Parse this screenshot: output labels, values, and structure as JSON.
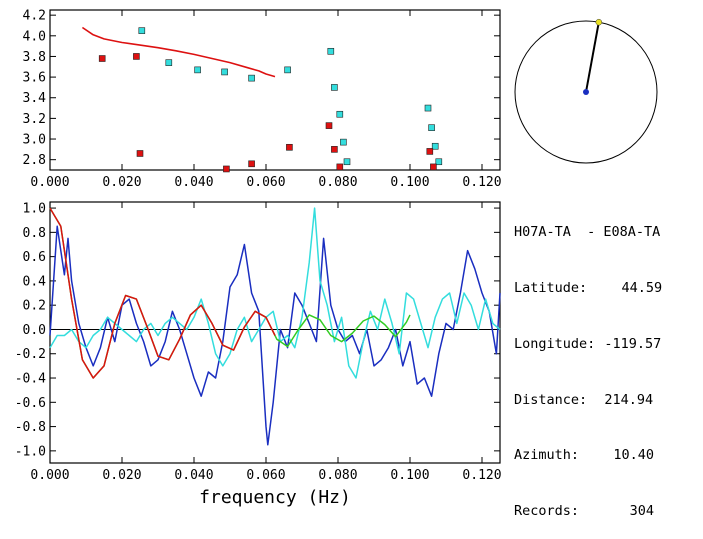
{
  "colors": {
    "axis": "#000000",
    "dispersion_fit": "#dd1111",
    "group_marker": "#33dddd",
    "phase_marker": "#dd1111",
    "bessel_red": "#dd1111",
    "bessel_green": "#33cc22",
    "ccf_blue": "#1a2ec0",
    "ccf_cyan": "#33dddd",
    "compass_needle": "#000000",
    "compass_center": "#1a2ec0",
    "compass_tip": "#e8e020"
  },
  "info": {
    "station_pair": "H07A-TA  - E08A-TA",
    "latitude_label": "Latitude:",
    "latitude_value": "44.59",
    "longitude_label": "Longitude:",
    "longitude_value": "-119.57",
    "distance_label": "Distance:",
    "distance_value": "214.94",
    "azimuth_label": "Azimuth:",
    "azimuth_value": "10.40",
    "records_label": "Records:",
    "records_value": "304"
  },
  "compass": {
    "azimuth_deg": 10.4
  },
  "chart_data": [
    {
      "type": "scatter",
      "title": "",
      "xlabel": "",
      "ylabel": "",
      "xlim": [
        0.0,
        0.125
      ],
      "ylim": [
        2.7,
        4.25
      ],
      "xticks": [
        "0.000",
        "0.020",
        "0.040",
        "0.060",
        "0.080",
        "0.100",
        "0.120"
      ],
      "xtick_values": [
        0.0,
        0.02,
        0.04,
        0.06,
        0.08,
        0.1,
        0.12
      ],
      "yticks": [
        "2.8",
        "3.0",
        "3.2",
        "3.4",
        "3.6",
        "3.8",
        "4.0",
        "4.2"
      ],
      "ytick_values": [
        2.8,
        3.0,
        3.2,
        3.4,
        3.6,
        3.8,
        4.0,
        4.2
      ],
      "series": [
        {
          "kind": "line",
          "color_key": "dispersion_fit",
          "x": [
            0.009,
            0.012,
            0.015,
            0.02,
            0.025,
            0.03,
            0.035,
            0.04,
            0.045,
            0.05,
            0.055,
            0.058,
            0.06,
            0.0625
          ],
          "y": [
            4.08,
            4.01,
            3.97,
            3.935,
            3.91,
            3.885,
            3.855,
            3.82,
            3.78,
            3.74,
            3.69,
            3.66,
            3.63,
            3.605
          ]
        },
        {
          "kind": "markers",
          "color_key": "group_marker",
          "x": [
            0.0255,
            0.033,
            0.041,
            0.0485,
            0.056,
            0.066,
            0.078,
            0.079,
            0.0805,
            0.0815,
            0.0825,
            0.105,
            0.106,
            0.107,
            0.108
          ],
          "y": [
            4.05,
            3.74,
            3.67,
            3.65,
            3.59,
            3.67,
            3.85,
            3.5,
            3.24,
            2.97,
            2.78,
            3.3,
            3.11,
            2.93,
            2.78
          ]
        },
        {
          "kind": "markers",
          "color_key": "phase_marker",
          "x": [
            0.0145,
            0.024,
            0.025,
            0.049,
            0.056,
            0.0665,
            0.0775,
            0.079,
            0.0805,
            0.1055,
            0.1065
          ],
          "y": [
            3.78,
            3.8,
            2.86,
            2.71,
            2.76,
            2.92,
            3.13,
            2.9,
            2.73,
            2.88,
            2.73
          ]
        }
      ]
    },
    {
      "type": "line",
      "title": "",
      "xlabel": "frequency (Hz)",
      "ylabel": "",
      "xlim": [
        0.0,
        0.125
      ],
      "ylim": [
        -1.1,
        1.05
      ],
      "xticks": [
        "0.000",
        "0.020",
        "0.040",
        "0.060",
        "0.080",
        "0.100",
        "0.120"
      ],
      "xtick_values": [
        0.0,
        0.02,
        0.04,
        0.06,
        0.08,
        0.1,
        0.12
      ],
      "yticks": [
        "1.0",
        "0.8",
        "0.6",
        "0.4",
        "0.2",
        "0.0",
        "-0.2",
        "-0.4",
        "-0.6",
        "-0.8",
        "-1.0"
      ],
      "ytick_values": [
        1.0,
        0.8,
        0.6,
        0.4,
        0.2,
        0.0,
        -0.2,
        -0.4,
        -0.6,
        -0.8,
        -1.0
      ],
      "series": [
        {
          "color_key": "ccf_blue",
          "x": [
            0.0,
            0.002,
            0.004,
            0.005,
            0.006,
            0.008,
            0.01,
            0.012,
            0.014,
            0.016,
            0.018,
            0.02,
            0.022,
            0.024,
            0.026,
            0.028,
            0.03,
            0.032,
            0.034,
            0.036,
            0.038,
            0.04,
            0.042,
            0.044,
            0.046,
            0.048,
            0.05,
            0.052,
            0.054,
            0.056,
            0.058,
            0.06,
            0.0605,
            0.062,
            0.064,
            0.066,
            0.068,
            0.07,
            0.072,
            0.074,
            0.076,
            0.078,
            0.08,
            0.082,
            0.084,
            0.086,
            0.088,
            0.09,
            0.092,
            0.094,
            0.096,
            0.098,
            0.1,
            0.102,
            0.104,
            0.106,
            0.108,
            0.11,
            0.112,
            0.114,
            0.116,
            0.118,
            0.12,
            0.122,
            0.124,
            0.125
          ],
          "y": [
            -0.05,
            0.85,
            0.45,
            0.75,
            0.4,
            0.05,
            -0.15,
            -0.3,
            -0.15,
            0.1,
            -0.1,
            0.2,
            0.25,
            0.05,
            -0.1,
            -0.3,
            -0.25,
            -0.1,
            0.15,
            0.0,
            -0.2,
            -0.4,
            -0.55,
            -0.35,
            -0.4,
            -0.1,
            0.35,
            0.45,
            0.7,
            0.3,
            0.15,
            -0.8,
            -0.95,
            -0.6,
            0.0,
            -0.15,
            0.3,
            0.2,
            0.05,
            -0.1,
            0.75,
            0.2,
            0.0,
            -0.1,
            -0.05,
            -0.2,
            0.0,
            -0.3,
            -0.25,
            -0.15,
            0.0,
            -0.3,
            -0.1,
            -0.45,
            -0.4,
            -0.55,
            -0.2,
            0.05,
            0.0,
            0.3,
            0.65,
            0.5,
            0.3,
            0.15,
            -0.2,
            0.3
          ]
        },
        {
          "color_key": "ccf_cyan",
          "x": [
            0.0,
            0.002,
            0.004,
            0.006,
            0.008,
            0.01,
            0.012,
            0.014,
            0.016,
            0.018,
            0.02,
            0.022,
            0.024,
            0.026,
            0.028,
            0.03,
            0.032,
            0.034,
            0.036,
            0.038,
            0.04,
            0.042,
            0.044,
            0.046,
            0.048,
            0.05,
            0.052,
            0.054,
            0.056,
            0.058,
            0.06,
            0.062,
            0.064,
            0.066,
            0.068,
            0.07,
            0.072,
            0.0735,
            0.075,
            0.077,
            0.079,
            0.081,
            0.083,
            0.085,
            0.087,
            0.089,
            0.091,
            0.093,
            0.095,
            0.097,
            0.099,
            0.101,
            0.103,
            0.105,
            0.107,
            0.109,
            0.111,
            0.113,
            0.115,
            0.117,
            0.119,
            0.121,
            0.123,
            0.125
          ],
          "y": [
            -0.15,
            -0.05,
            -0.05,
            0.0,
            -0.1,
            -0.15,
            -0.05,
            0.0,
            0.1,
            0.05,
            0.0,
            -0.05,
            -0.1,
            0.0,
            0.05,
            -0.05,
            0.05,
            0.1,
            0.05,
            0.0,
            0.1,
            0.25,
            0.05,
            -0.2,
            -0.3,
            -0.2,
            0.0,
            0.1,
            -0.1,
            0.0,
            0.1,
            0.15,
            -0.1,
            -0.05,
            -0.15,
            0.1,
            0.55,
            1.0,
            0.4,
            0.2,
            -0.1,
            0.1,
            -0.3,
            -0.4,
            -0.1,
            0.15,
            0.0,
            0.25,
            0.05,
            -0.2,
            0.3,
            0.25,
            0.05,
            -0.15,
            0.1,
            0.25,
            0.3,
            0.05,
            0.3,
            0.2,
            0.0,
            0.25,
            0.05,
            0.0
          ]
        },
        {
          "color_key": "bessel_green",
          "x": [
            0.0,
            0.003,
            0.006,
            0.009,
            0.012,
            0.015,
            0.018,
            0.021,
            0.024,
            0.027,
            0.03,
            0.033,
            0.036,
            0.039,
            0.042,
            0.045,
            0.048,
            0.051,
            0.054,
            0.057,
            0.06,
            0.063,
            0.066,
            0.069,
            0.072,
            0.075,
            0.078,
            0.081,
            0.084,
            0.087,
            0.09,
            0.093,
            0.096,
            0.099,
            0.1
          ],
          "y": [
            1.0,
            0.85,
            0.25,
            -0.25,
            -0.4,
            -0.3,
            0.05,
            0.28,
            0.25,
            0.02,
            -0.22,
            -0.25,
            -0.08,
            0.12,
            0.2,
            0.05,
            -0.13,
            -0.17,
            0.02,
            0.15,
            0.1,
            -0.08,
            -0.14,
            0.0,
            0.12,
            0.08,
            -0.05,
            -0.1,
            -0.03,
            0.07,
            0.11,
            0.04,
            -0.06,
            0.06,
            0.12
          ]
        },
        {
          "color_key": "bessel_red",
          "x": [
            0.0,
            0.003,
            0.006,
            0.009,
            0.012,
            0.015,
            0.018,
            0.021,
            0.024,
            0.027,
            0.03,
            0.033,
            0.036,
            0.039,
            0.042,
            0.045,
            0.048,
            0.051,
            0.054,
            0.057,
            0.06,
            0.0625
          ],
          "y": [
            1.0,
            0.85,
            0.25,
            -0.25,
            -0.4,
            -0.3,
            0.05,
            0.28,
            0.25,
            0.02,
            -0.22,
            -0.25,
            -0.08,
            0.12,
            0.2,
            0.05,
            -0.13,
            -0.17,
            0.02,
            0.15,
            0.1,
            -0.05
          ]
        }
      ]
    }
  ]
}
